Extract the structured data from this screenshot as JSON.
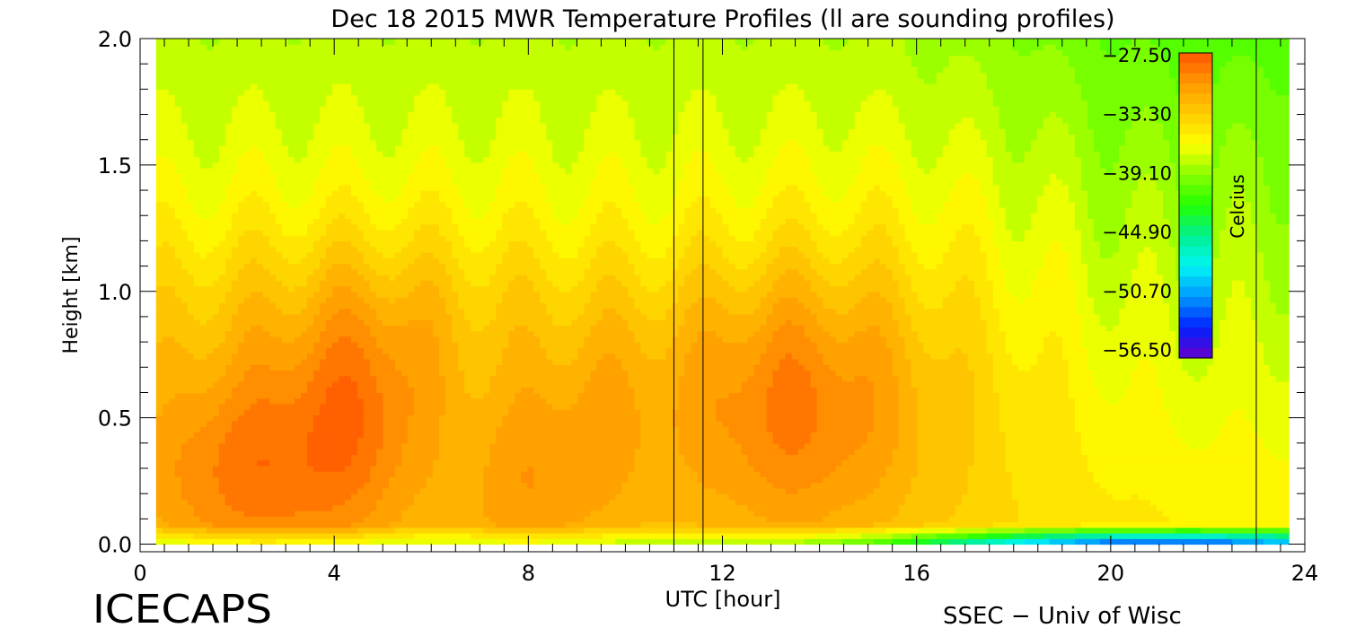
{
  "chart_data": {
    "type": "heatmap",
    "title": "Dec 18 2015 MWR Temperature Profiles (ll are sounding profiles)",
    "xlabel": "UTC [hour]",
    "ylabel": "Height [km]",
    "xlim": [
      0,
      24
    ],
    "ylim": [
      -0.03,
      2.0
    ],
    "x_ticks": [
      0,
      4,
      8,
      12,
      16,
      20,
      24
    ],
    "x_tick_labels": [
      "0",
      "4",
      "8",
      "12",
      "16",
      "20",
      "24"
    ],
    "y_ticks": [
      0.0,
      0.5,
      1.0,
      1.5,
      2.0
    ],
    "y_tick_labels": [
      "0.0",
      "0.5",
      "1.0",
      "1.5",
      "2.0"
    ],
    "data_time_range": [
      0.33,
      23.67
    ],
    "sounding_markers": [
      11.0,
      11.6,
      23.0
    ],
    "colorbar": {
      "label": "Celcius",
      "ticks": [
        -27.5,
        -33.3,
        -39.1,
        -44.9,
        -50.7,
        -56.5
      ],
      "tick_labels": [
        "−27.50",
        "−33.30",
        "−39.10",
        "−44.90",
        "−50.70",
        "−56.50"
      ],
      "min": -57.5,
      "max": -27.5,
      "position": "top-right, inside plot"
    },
    "contour_levels": 30,
    "footer_left": "ICECAPS",
    "footer_right": "SSEC − Univ of Wisc"
  },
  "colors": {
    "background": "#ffffff",
    "axis": "#000000",
    "scale": [
      "#6600cc",
      "#0022ff",
      "#0099ff",
      "#00f5f5",
      "#00f090",
      "#22ff00",
      "#88ff00",
      "#ffff00",
      "#ffcc00",
      "#ff9900",
      "#ff5500"
    ]
  }
}
